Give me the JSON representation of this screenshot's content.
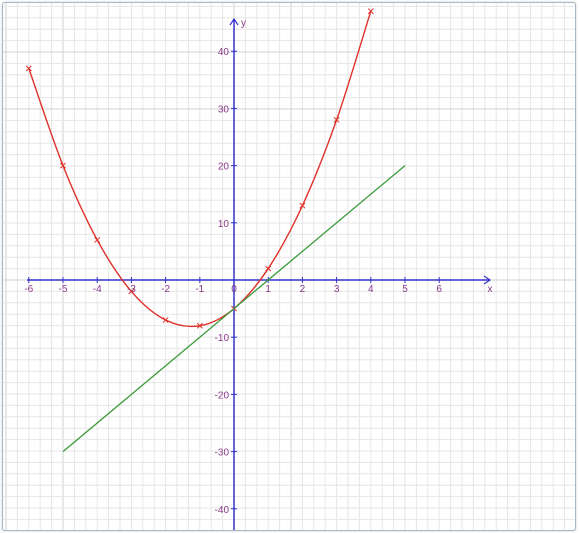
{
  "chart_data": {
    "type": "line",
    "title": "",
    "xlabel": "x",
    "ylabel": "y",
    "xlim": [
      -6.2,
      7.6
    ],
    "ylim": [
      -43,
      47
    ],
    "grid": true,
    "x_ticks": [
      -6,
      -5,
      -4,
      -3,
      -2,
      -1,
      0,
      1,
      2,
      3,
      4,
      5,
      6
    ],
    "y_ticks": [
      -40,
      -30,
      -20,
      -10,
      10,
      20,
      30,
      40
    ],
    "series": [
      {
        "type": "curve",
        "color": "#e0302a",
        "marker": "x",
        "x": [
          -6,
          -5,
          -4,
          -3,
          -2,
          -1,
          0,
          1,
          2,
          3,
          4
        ],
        "y": [
          37,
          20,
          7,
          -2,
          -7,
          -8,
          -5,
          2,
          13,
          28,
          47
        ]
      },
      {
        "type": "line",
        "color": "#3a9a3a",
        "x": [
          -5,
          5
        ],
        "y": [
          -30,
          20
        ]
      }
    ],
    "colors": {
      "axis": "#3333cc",
      "grid_minor": "#e6e6e6",
      "grid_major": "#d2d2d2",
      "tick_label": "#8a3a8a"
    }
  }
}
